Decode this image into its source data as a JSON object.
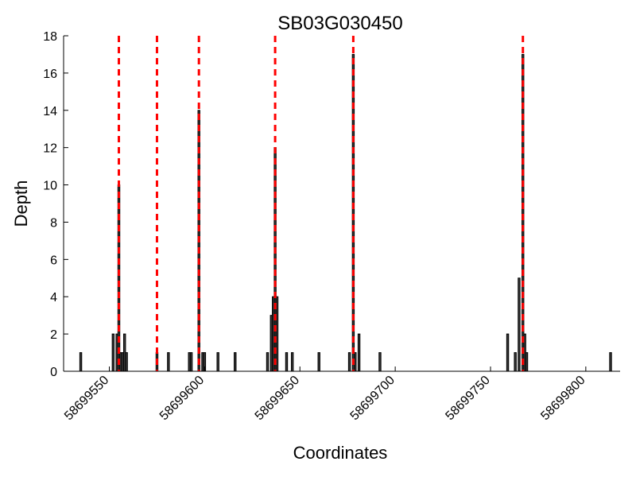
{
  "chart_data": {
    "type": "bar",
    "title": "SB03G030450",
    "xlabel": "Coordinates",
    "ylabel": "Depth",
    "xlim": [
      58699526,
      58699818
    ],
    "ylim": [
      0,
      18
    ],
    "x_ticks": [
      58699550,
      58699600,
      58699650,
      58699700,
      58699750,
      58699800
    ],
    "x_tick_labels": [
      "58699550",
      "58699600",
      "58699650",
      "58699700",
      "58699750",
      "58699800"
    ],
    "y_ticks": [
      0,
      2,
      4,
      6,
      8,
      10,
      12,
      14,
      16,
      18
    ],
    "y_tick_labels": [
      "0",
      "2",
      "4",
      "6",
      "8",
      "10",
      "12",
      "14",
      "16",
      "18"
    ],
    "grid": false,
    "bar_color": "#3a3a3a",
    "bar_edge_color": "#000000",
    "marker_color": "#ff0000",
    "bars": [
      {
        "x": 58699535,
        "depth": 1
      },
      {
        "x": 58699552,
        "depth": 2
      },
      {
        "x": 58699554,
        "depth": 2
      },
      {
        "x": 58699555,
        "depth": 10
      },
      {
        "x": 58699556,
        "depth": 1
      },
      {
        "x": 58699557,
        "depth": 1
      },
      {
        "x": 58699558,
        "depth": 2
      },
      {
        "x": 58699559,
        "depth": 1
      },
      {
        "x": 58699575,
        "depth": 1
      },
      {
        "x": 58699581,
        "depth": 1
      },
      {
        "x": 58699592,
        "depth": 1
      },
      {
        "x": 58699593,
        "depth": 1
      },
      {
        "x": 58699597,
        "depth": 14
      },
      {
        "x": 58699599,
        "depth": 1
      },
      {
        "x": 58699600,
        "depth": 1
      },
      {
        "x": 58699607,
        "depth": 1
      },
      {
        "x": 58699616,
        "depth": 1
      },
      {
        "x": 58699633,
        "depth": 1
      },
      {
        "x": 58699635,
        "depth": 3
      },
      {
        "x": 58699636,
        "depth": 4
      },
      {
        "x": 58699637,
        "depth": 12
      },
      {
        "x": 58699638,
        "depth": 4
      },
      {
        "x": 58699643,
        "depth": 1
      },
      {
        "x": 58699646,
        "depth": 1
      },
      {
        "x": 58699660,
        "depth": 1
      },
      {
        "x": 58699676,
        "depth": 1
      },
      {
        "x": 58699678,
        "depth": 17
      },
      {
        "x": 58699679,
        "depth": 1
      },
      {
        "x": 58699681,
        "depth": 2
      },
      {
        "x": 58699692,
        "depth": 1
      },
      {
        "x": 58699759,
        "depth": 2
      },
      {
        "x": 58699763,
        "depth": 1
      },
      {
        "x": 58699765,
        "depth": 5
      },
      {
        "x": 58699767,
        "depth": 17
      },
      {
        "x": 58699768,
        "depth": 2
      },
      {
        "x": 58699769,
        "depth": 1
      },
      {
        "x": 58699813,
        "depth": 1
      }
    ],
    "marker_lines_x": [
      58699555,
      58699575,
      58699597,
      58699637,
      58699678,
      58699767
    ]
  }
}
